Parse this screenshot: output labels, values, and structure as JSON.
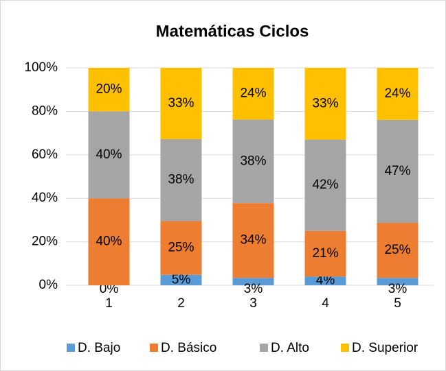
{
  "chart_data": {
    "type": "stacked_bar_100",
    "title": "Matemáticas Ciclos",
    "categories": [
      "1",
      "2",
      "3",
      "4",
      "5"
    ],
    "series": [
      {
        "name": "D. Bajo",
        "color": "#5b9bd5",
        "values": [
          0,
          4.8,
          3.4,
          4,
          3.4
        ],
        "value_labels": [
          "0%",
          "5%",
          "3%",
          "4%",
          "3%"
        ]
      },
      {
        "name": "D. Básico",
        "color": "#ed7d31",
        "values": [
          40,
          24.7,
          34.4,
          21,
          25.3
        ],
        "value_labels": [
          "40%",
          "25%",
          "34%",
          "21%",
          "25%"
        ]
      },
      {
        "name": "D. Alto",
        "color": "#a5a5a5",
        "values": [
          40,
          37.7,
          38.4,
          42,
          47.4
        ],
        "value_labels": [
          "40%",
          "38%",
          "38%",
          "42%",
          "47%"
        ]
      },
      {
        "name": "D. Superior",
        "color": "#ffc000",
        "values": [
          20,
          32.8,
          23.8,
          33,
          23.9
        ],
        "value_labels": [
          "20%",
          "33%",
          "24%",
          "33%",
          "24%"
        ]
      }
    ],
    "ylim": [
      0,
      100
    ],
    "yticks": [
      {
        "value": 0,
        "label": "0%"
      },
      {
        "value": 20,
        "label": "20%"
      },
      {
        "value": 40,
        "label": "40%"
      },
      {
        "value": 60,
        "label": "60%"
      },
      {
        "value": 80,
        "label": "80%"
      },
      {
        "value": 100,
        "label": "100%"
      }
    ],
    "grid": true,
    "legend": "bottom"
  }
}
